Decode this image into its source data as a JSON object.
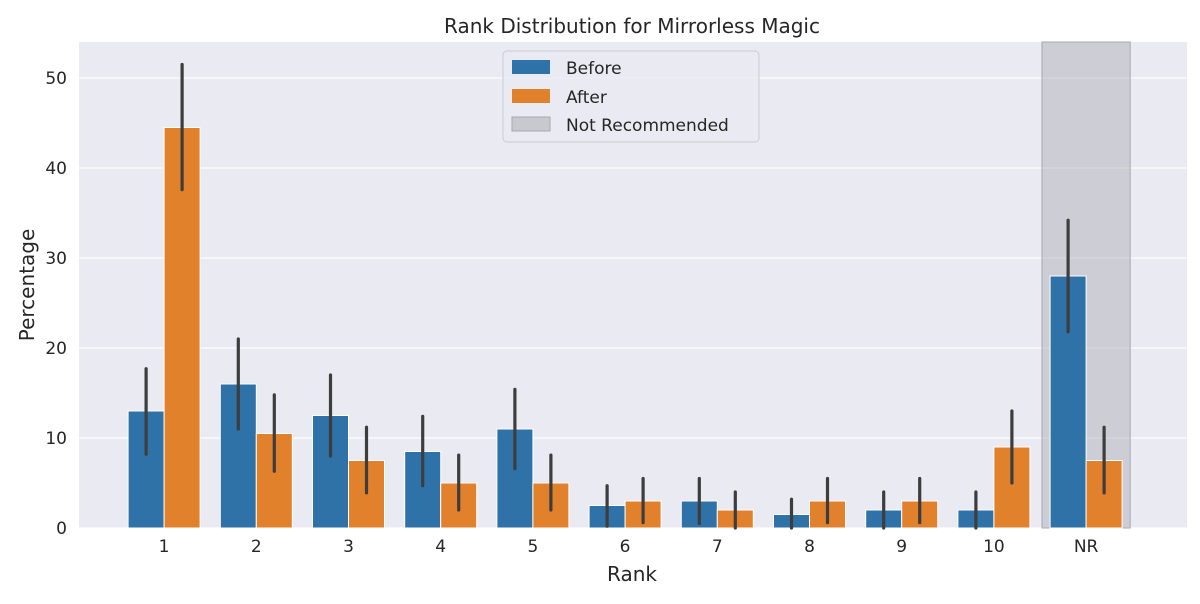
{
  "chart_data": {
    "type": "bar",
    "title": "Rank Distribution for Mirrorless Magic",
    "xlabel": "Rank",
    "ylabel": "Percentage",
    "categories": [
      "1",
      "2",
      "3",
      "4",
      "5",
      "6",
      "7",
      "8",
      "9",
      "10",
      "NR"
    ],
    "ylim": [
      0,
      54
    ],
    "yticks": [
      0,
      10,
      20,
      30,
      40,
      50
    ],
    "grid": true,
    "legend_position": "top-center",
    "series": [
      {
        "name": "Before",
        "color": "#2e72a7",
        "values": [
          13,
          16,
          12.5,
          8.5,
          11,
          2.5,
          3,
          1.5,
          2,
          2,
          28
        ],
        "error_low": [
          8.2,
          11,
          8,
          4.7,
          6.6,
          0.2,
          0.5,
          0,
          0,
          0,
          21.8
        ],
        "error_high": [
          17.7,
          21,
          17,
          12.4,
          15.4,
          4.7,
          5.5,
          3.2,
          4,
          4,
          34.2
        ]
      },
      {
        "name": "After",
        "color": "#e1812c",
        "values": [
          44.5,
          10.5,
          7.5,
          5,
          5,
          3,
          2,
          3,
          3,
          9,
          7.5
        ],
        "error_low": [
          37.6,
          6.3,
          3.9,
          2,
          2,
          0.6,
          0,
          0.6,
          0.6,
          5,
          3.9
        ],
        "error_high": [
          51.5,
          14.8,
          11.2,
          8.1,
          8.1,
          5.5,
          4,
          5.5,
          5.5,
          13,
          11.2
        ]
      }
    ],
    "highlight": {
      "name": "Not Recommended",
      "category": "NR",
      "color": "#b0b0b8"
    }
  }
}
